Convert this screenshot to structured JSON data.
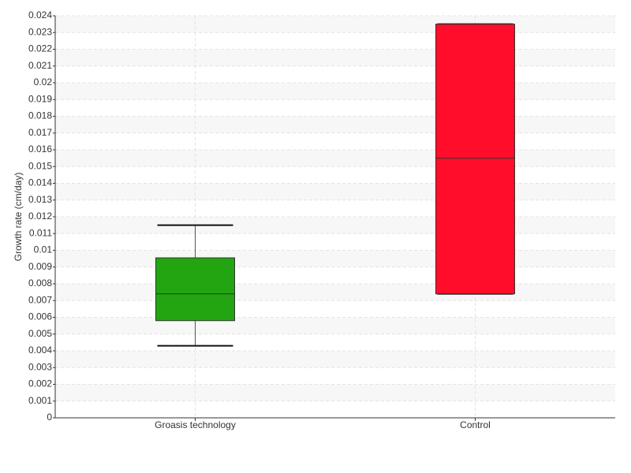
{
  "chart_data": {
    "type": "box",
    "ylabel": "Growth rate (cm/day)",
    "categories": [
      "Groasis technology",
      "Control"
    ],
    "boxes": [
      {
        "min": 0.0043,
        "q1": 0.0058,
        "median": 0.0074,
        "q3": 0.00955,
        "max": 0.0115,
        "color": "#22a511"
      },
      {
        "min": 0.0074,
        "q1": 0.0074,
        "median": 0.0155,
        "q3": 0.0235,
        "max": 0.0235,
        "color": "#ff0d2a"
      }
    ],
    "ylim": [
      0,
      0.024
    ],
    "yticks": [
      0,
      0.001,
      0.002,
      0.003,
      0.004,
      0.005,
      0.006,
      0.007,
      0.008,
      0.009,
      0.01,
      0.011,
      0.012,
      0.013,
      0.014,
      0.015,
      0.016,
      0.017,
      0.018,
      0.019,
      0.02,
      0.021,
      0.022,
      0.023,
      0.024
    ],
    "grid": true
  }
}
